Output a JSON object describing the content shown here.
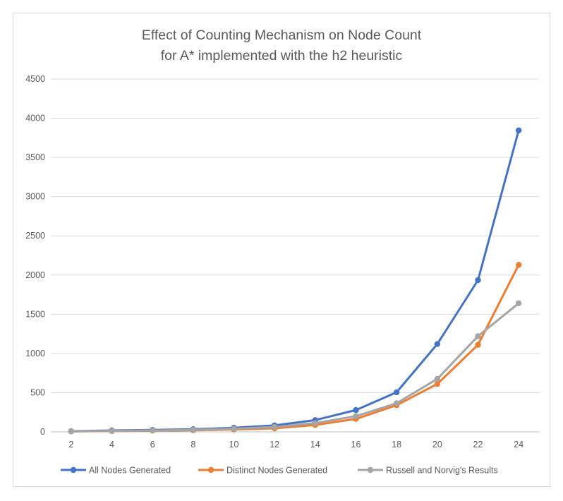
{
  "chart_data": {
    "type": "line",
    "title": "Effect of Counting Mechanism on Node Count",
    "subtitle": "for A* implemented with the h2 heuristic",
    "xlabel": "",
    "ylabel": "",
    "x": [
      2,
      4,
      6,
      8,
      10,
      12,
      14,
      16,
      18,
      20,
      22,
      24
    ],
    "x_tick_labels": [
      "2",
      "4",
      "6",
      "8",
      "10",
      "12",
      "14",
      "16",
      "18",
      "20",
      "22",
      "24"
    ],
    "ylim": [
      0,
      4500
    ],
    "y_ticks": [
      0,
      500,
      1000,
      1500,
      2000,
      2500,
      3000,
      3500,
      4000,
      4500
    ],
    "y_tick_labels": [
      "0",
      "500",
      "1000",
      "1500",
      "2000",
      "2500",
      "3000",
      "3500",
      "4000",
      "4500"
    ],
    "grid": true,
    "legend_position": "bottom",
    "series": [
      {
        "name": "All Nodes Generated",
        "color": "#4472c4",
        "values": [
          8,
          18,
          25,
          33,
          52,
          82,
          150,
          278,
          505,
          1120,
          1935,
          3845
        ]
      },
      {
        "name": "Distinct Nodes Generated",
        "color": "#ed7d31",
        "values": [
          6,
          10,
          15,
          20,
          30,
          45,
          88,
          165,
          340,
          610,
          1110,
          2130
        ]
      },
      {
        "name": "Russell and Norvig's Results",
        "color": "#a5a5a5",
        "values": [
          6,
          12,
          18,
          25,
          39,
          62,
          112,
          200,
          365,
          675,
          1220,
          1640
        ]
      }
    ]
  }
}
